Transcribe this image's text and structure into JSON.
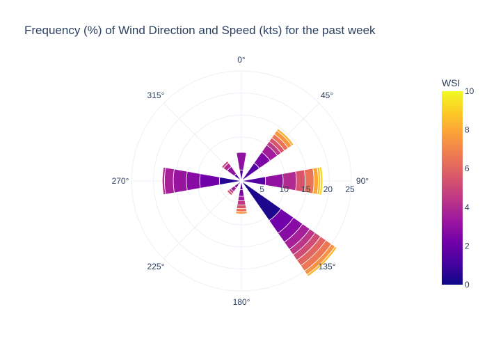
{
  "chart_data": {
    "type": "barpolar",
    "title": "Frequency (%) of Wind Direction and Speed (kts) for the past week",
    "angular_axis": {
      "rotation_deg": 90,
      "direction": "clockwise",
      "tick_labels": [
        "0°",
        "45°",
        "90°",
        "135°",
        "180°",
        "225°",
        "270°",
        "315°"
      ],
      "tick_angles": [
        0,
        45,
        90,
        135,
        180,
        225,
        270,
        315
      ]
    },
    "radial_axis": {
      "range": [
        0,
        25
      ],
      "tick_labels": [
        "5",
        "10",
        "15",
        "20",
        "25"
      ],
      "tick_values": [
        5,
        10,
        15,
        20,
        25
      ],
      "tick_angle_deg": 90
    },
    "colorbar": {
      "title": "WSI",
      "range": [
        0,
        10
      ],
      "tick_labels": [
        "0",
        "2",
        "4",
        "6",
        "8",
        "10"
      ],
      "tick_values": [
        0,
        2,
        4,
        6,
        8,
        10
      ],
      "colorscale": [
        "#0d0887",
        "#46039f",
        "#7201a8",
        "#9c179e",
        "#bd3786",
        "#d8576b",
        "#ed7953",
        "#fb9f3a",
        "#fdca26",
        "#f0f921"
      ]
    },
    "bar_width_deg": 20,
    "series": [
      {
        "direction": 0,
        "segments": [
          {
            "r": 2.5,
            "wsi": 1.5
          },
          {
            "r": 4.0,
            "wsi": 3.0
          },
          {
            "r": 0.0,
            "wsi": 4.5
          }
        ]
      },
      {
        "direction": 45,
        "segments": [
          {
            "r": 5.0,
            "wsi": 1.5
          },
          {
            "r": 3.0,
            "wsi": 2.5
          },
          {
            "r": 2.0,
            "wsi": 3.5
          },
          {
            "r": 1.0,
            "wsi": 4.5
          },
          {
            "r": 1.0,
            "wsi": 5.5
          },
          {
            "r": 1.0,
            "wsi": 6.5
          },
          {
            "r": 1.0,
            "wsi": 7.5
          },
          {
            "r": 0.5,
            "wsi": 8.2
          }
        ]
      },
      {
        "direction": 90,
        "segments": [
          {
            "r": 5.5,
            "wsi": 1.5
          },
          {
            "r": 4.0,
            "wsi": 3.0
          },
          {
            "r": 3.0,
            "wsi": 4.0
          },
          {
            "r": 2.0,
            "wsi": 5.5
          },
          {
            "r": 2.0,
            "wsi": 6.5
          },
          {
            "r": 1.0,
            "wsi": 8.0
          },
          {
            "r": 0.5,
            "wsi": 8.6
          },
          {
            "r": 0.5,
            "wsi": 9.2
          }
        ]
      },
      {
        "direction": 135,
        "segments": [
          {
            "r": 11.0,
            "wsi": 0.3
          },
          {
            "r": 3.5,
            "wsi": 2.2
          },
          {
            "r": 2.5,
            "wsi": 2.8
          },
          {
            "r": 2.0,
            "wsi": 3.6
          },
          {
            "r": 1.5,
            "wsi": 4.4
          },
          {
            "r": 1.5,
            "wsi": 5.2
          },
          {
            "r": 1.5,
            "wsi": 6.0
          },
          {
            "r": 1.5,
            "wsi": 6.6
          },
          {
            "r": 1.0,
            "wsi": 7.4
          },
          {
            "r": 0.5,
            "wsi": 8.4
          }
        ]
      },
      {
        "direction": 180,
        "segments": [
          {
            "r": 2.0,
            "wsi": 1.5
          },
          {
            "r": 1.5,
            "wsi": 2.5
          },
          {
            "r": 1.0,
            "wsi": 3.5
          },
          {
            "r": 1.0,
            "wsi": 4.5
          },
          {
            "r": 0.8,
            "wsi": 5.5
          },
          {
            "r": 0.7,
            "wsi": 6.5
          },
          {
            "r": 0.5,
            "wsi": 7.5
          }
        ]
      },
      {
        "direction": 225,
        "segments": [
          {
            "r": 1.0,
            "wsi": 1.5
          },
          {
            "r": 1.0,
            "wsi": 2.5
          },
          {
            "r": 1.0,
            "wsi": 3.5
          },
          {
            "r": 0.5,
            "wsi": 4.5
          },
          {
            "r": 0.5,
            "wsi": 5.5
          }
        ]
      },
      {
        "direction": 270,
        "segments": [
          {
            "r": 5.0,
            "wsi": 0.5
          },
          {
            "r": 4.5,
            "wsi": 2.2
          },
          {
            "r": 3.0,
            "wsi": 2.8
          },
          {
            "r": 3.0,
            "wsi": 3.2
          },
          {
            "r": 2.0,
            "wsi": 3.6
          },
          {
            "r": 0.5,
            "wsi": 4.2
          }
        ]
      },
      {
        "direction": 315,
        "segments": [
          {
            "r": 2.0,
            "wsi": 1.5
          },
          {
            "r": 2.0,
            "wsi": 3.0
          },
          {
            "r": 1.0,
            "wsi": 4.0
          },
          {
            "r": 0.5,
            "wsi": 5.0
          }
        ]
      }
    ]
  }
}
